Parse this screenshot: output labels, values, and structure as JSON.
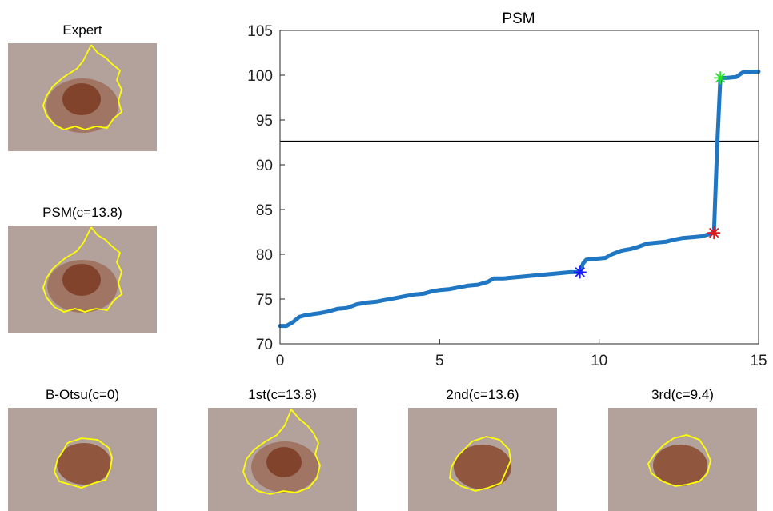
{
  "panels": {
    "expert": {
      "title": "Expert"
    },
    "psm": {
      "title": "PSM(c=13.8)"
    },
    "botsu": {
      "title": "B-Otsu(c=0)"
    },
    "first": {
      "title": "1st(c=13.8)"
    },
    "second": {
      "title": "2nd(c=13.6)"
    },
    "third": {
      "title": "3rd(c=9.4)"
    }
  },
  "colors": {
    "skin": "#b3a29c",
    "lesion": "#8a4a2e",
    "contour": "#ffff00",
    "line": "#1f77c4",
    "threshold": "#000000",
    "marker_blue": "#1a1aff",
    "marker_red": "#e01818",
    "marker_green": "#22e022"
  },
  "chart_data": {
    "type": "line",
    "title": "PSM",
    "xlabel": "",
    "ylabel": "",
    "xlim": [
      0,
      15
    ],
    "ylim": [
      70,
      105
    ],
    "xticks": [
      0,
      5,
      10,
      15
    ],
    "yticks": [
      70,
      75,
      80,
      85,
      90,
      95,
      100,
      105
    ],
    "grid": false,
    "series": [
      {
        "x": [
          0,
          0.2,
          0.4,
          0.6,
          0.8,
          1.2,
          1.5,
          1.8,
          2.1,
          2.4,
          2.7,
          3.0,
          3.3,
          3.6,
          3.9,
          4.2,
          4.5,
          4.8,
          5.0,
          5.3,
          5.6,
          5.9,
          6.2,
          6.5,
          6.7,
          7.0,
          7.3,
          7.6,
          7.9,
          8.2,
          8.5,
          8.8,
          9.1,
          9.4,
          9.5,
          9.6,
          9.9,
          10.2,
          10.4,
          10.7,
          11.0,
          11.2,
          11.5,
          11.8,
          12.1,
          12.3,
          12.6,
          12.9,
          13.2,
          13.6,
          13.7,
          13.8,
          14.0,
          14.3,
          14.5,
          14.8,
          15.0
        ],
        "y": [
          72.0,
          72.0,
          72.4,
          73.0,
          73.2,
          73.4,
          73.6,
          73.9,
          74.0,
          74.4,
          74.6,
          74.7,
          74.9,
          75.1,
          75.3,
          75.5,
          75.6,
          75.9,
          76.0,
          76.1,
          76.3,
          76.5,
          76.6,
          76.9,
          77.3,
          77.3,
          77.4,
          77.5,
          77.6,
          77.7,
          77.8,
          77.9,
          78.0,
          78.0,
          79.0,
          79.4,
          79.5,
          79.6,
          80.0,
          80.4,
          80.6,
          80.8,
          81.2,
          81.3,
          81.4,
          81.6,
          81.8,
          81.9,
          82.0,
          82.4,
          92.0,
          99.7,
          99.7,
          99.8,
          100.3,
          100.4,
          100.4
        ]
      }
    ],
    "threshold": 92.6,
    "markers": [
      {
        "x": 9.4,
        "y": 78.0,
        "color": "blue"
      },
      {
        "x": 13.6,
        "y": 82.4,
        "color": "red"
      },
      {
        "x": 13.8,
        "y": 99.7,
        "color": "green"
      }
    ]
  }
}
